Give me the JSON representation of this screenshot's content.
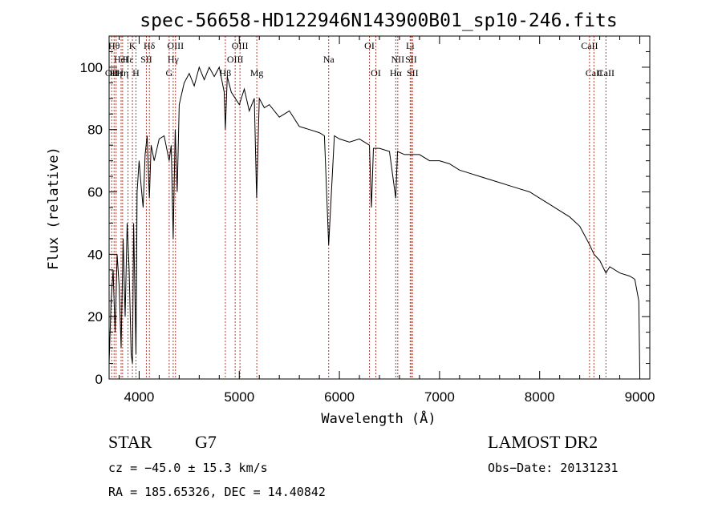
{
  "chart_data": {
    "type": "line",
    "title": "spec-56658-HD122946N143900B01_sp10-246.fits",
    "xlabel": "Wavelength (Å)",
    "ylabel": "Flux (relative)",
    "xlim": [
      3700,
      9100
    ],
    "ylim": [
      0,
      110
    ],
    "xticks": [
      4000,
      5000,
      6000,
      7000,
      8000,
      9000
    ],
    "yticks": [
      0,
      20,
      40,
      60,
      80,
      100
    ],
    "grid": false,
    "series": [
      {
        "color": "#000000",
        "x": [
          3700,
          3720,
          3740,
          3760,
          3780,
          3800,
          3820,
          3840,
          3860,
          3880,
          3900,
          3920,
          3933,
          3945,
          3968,
          3980,
          4000,
          4020,
          4040,
          4060,
          4080,
          4102,
          4120,
          4150,
          4200,
          4250,
          4300,
          4320,
          4340,
          4360,
          4380,
          4400,
          4450,
          4500,
          4550,
          4600,
          4650,
          4700,
          4750,
          4800,
          4850,
          4861,
          4880,
          4920,
          4960,
          5000,
          5050,
          5100,
          5150,
          5173,
          5200,
          5250,
          5300,
          5400,
          5500,
          5600,
          5700,
          5800,
          5850,
          5893,
          5950,
          6000,
          6100,
          6200,
          6300,
          6320,
          6340,
          6400,
          6500,
          6563,
          6580,
          6650,
          6700,
          6800,
          6900,
          7000,
          7100,
          7200,
          7300,
          7400,
          7500,
          7600,
          7700,
          7800,
          7900,
          8000,
          8100,
          8200,
          8300,
          8400,
          8450,
          8500,
          8542,
          8600,
          8662,
          8700,
          8800,
          8900,
          8950,
          8990,
          9000
        ],
        "y": [
          5,
          25,
          35,
          15,
          40,
          30,
          10,
          45,
          20,
          50,
          35,
          8,
          5,
          50,
          8,
          60,
          70,
          62,
          55,
          72,
          78,
          58,
          75,
          70,
          77,
          78,
          70,
          75,
          45,
          80,
          60,
          88,
          95,
          98,
          94,
          100,
          96,
          100,
          97,
          100,
          92,
          80,
          97,
          92,
          90,
          88,
          93,
          86,
          90,
          58,
          90,
          87,
          88,
          84,
          86,
          81,
          80,
          79,
          78,
          43,
          78,
          77,
          76,
          77,
          75,
          55,
          74,
          74,
          73,
          58,
          73,
          72,
          72,
          72,
          70,
          70,
          69,
          67,
          66,
          65,
          64,
          63,
          62,
          61,
          60,
          58,
          56,
          54,
          52,
          49,
          46,
          43,
          40,
          38,
          34,
          36,
          34,
          33,
          32,
          25,
          2
        ]
      }
    ],
    "lines": [
      {
        "w": 3726,
        "label": "OII",
        "row": 2
      },
      {
        "w": 3750,
        "label": "Hθ",
        "row": 0
      },
      {
        "w": 3770,
        "label": "Hη",
        "row": 2
      },
      {
        "w": 3820,
        "label": "HeI",
        "row": 1
      },
      {
        "w": 3835,
        "label": "Hη",
        "row": 2
      },
      {
        "w": 3889,
        "label": "Hε",
        "row": 1
      },
      {
        "w": 3933,
        "label": "K",
        "row": 0
      },
      {
        "w": 3968,
        "label": "H",
        "row": 2
      },
      {
        "w": 4072,
        "label": "SII",
        "row": 1
      },
      {
        "w": 4102,
        "label": "Hδ",
        "row": 0
      },
      {
        "w": 4300,
        "label": "G",
        "row": 2
      },
      {
        "w": 4340,
        "label": "Hγ",
        "row": 1
      },
      {
        "w": 4363,
        "label": "OIII",
        "row": 0
      },
      {
        "w": 4861,
        "label": "Hβ",
        "row": 2
      },
      {
        "w": 4959,
        "label": "OIII",
        "row": 1
      },
      {
        "w": 5007,
        "label": "OIII",
        "row": 0
      },
      {
        "w": 5175,
        "label": "Mg",
        "row": 2
      },
      {
        "w": 5893,
        "label": "Na",
        "row": 1
      },
      {
        "w": 6300,
        "label": "OI",
        "row": 0
      },
      {
        "w": 6364,
        "label": "OI",
        "row": 2
      },
      {
        "w": 6563,
        "label": "Hα",
        "row": 2
      },
      {
        "w": 6583,
        "label": "NII",
        "row": 1
      },
      {
        "w": 6707,
        "label": "Li",
        "row": 0
      },
      {
        "w": 6716,
        "label": "SII",
        "row": 1
      },
      {
        "w": 6731,
        "label": "SII",
        "row": 2
      },
      {
        "w": 8498,
        "label": "CaII",
        "row": 0
      },
      {
        "w": 8542,
        "label": "CaII",
        "row": 2
      },
      {
        "w": 8662,
        "label": "CaII",
        "row": 2
      }
    ],
    "line_color": "#c0392b"
  },
  "info": {
    "object_type": "STAR",
    "subclass": "G7",
    "survey": "LAMOST DR2",
    "cz": "cz = −45.0 ± 15.3 km/s",
    "obs_date": "Obs−Date: 20131231",
    "coords": "RA = 185.65326, DEC =  14.40842"
  }
}
